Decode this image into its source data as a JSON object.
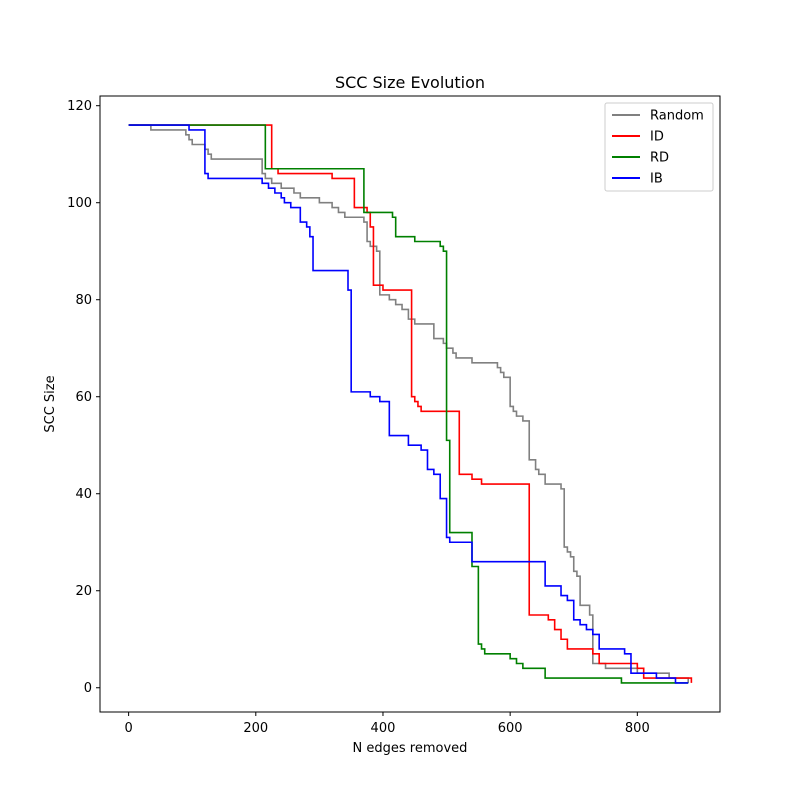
{
  "chart_data": {
    "type": "line",
    "title": "SCC Size Evolution",
    "xlabel": "N edges removed",
    "ylabel": "SCC Size",
    "xlim": [
      -45,
      930
    ],
    "ylim": [
      -5,
      122
    ],
    "xticks": [
      0,
      200,
      400,
      600,
      800
    ],
    "yticks": [
      0,
      20,
      40,
      60,
      80,
      100,
      120
    ],
    "grid": false,
    "legend_position": "top-right",
    "series": [
      {
        "name": "Random",
        "color": "#808080",
        "x": [
          0,
          35,
          90,
          95,
          100,
          105,
          120,
          125,
          130,
          150,
          200,
          210,
          215,
          225,
          240,
          260,
          270,
          300,
          320,
          330,
          340,
          365,
          370,
          375,
          380,
          390,
          395,
          400,
          410,
          420,
          430,
          440,
          450,
          460,
          480,
          490,
          495,
          500,
          505,
          510,
          515,
          540,
          580,
          585,
          590,
          600,
          605,
          610,
          620,
          630,
          640,
          645,
          655,
          680,
          685,
          690,
          695,
          700,
          705,
          710,
          725,
          730,
          740,
          750,
          800,
          850,
          880
        ],
        "y": [
          116,
          115,
          114,
          113,
          112,
          112,
          111,
          110,
          109,
          109,
          109,
          106,
          105,
          104,
          103,
          102,
          101,
          100,
          99,
          98,
          97,
          97,
          96,
          92,
          91,
          90,
          81,
          81,
          80,
          79,
          78,
          76,
          75,
          75,
          72,
          72,
          71,
          70,
          70,
          69,
          68,
          67,
          66,
          65,
          64,
          58,
          57,
          56,
          55,
          47,
          45,
          44,
          42,
          41,
          29,
          28,
          27,
          24,
          23,
          17,
          15,
          5,
          5,
          4,
          3,
          2,
          1
        ]
      },
      {
        "name": "ID",
        "color": "#ff0000",
        "x": [
          0,
          225,
          235,
          265,
          320,
          355,
          375,
          380,
          385,
          400,
          445,
          450,
          455,
          460,
          470,
          490,
          495,
          520,
          540,
          555,
          630,
          640,
          660,
          670,
          680,
          690,
          710,
          730,
          740,
          760,
          800,
          810,
          820,
          860,
          880,
          885
        ],
        "y": [
          116,
          107,
          106,
          106,
          105,
          99,
          98,
          95,
          83,
          82,
          60,
          59,
          58,
          57,
          57,
          57,
          57,
          44,
          43,
          42,
          15,
          15,
          14,
          12,
          10,
          8,
          8,
          7,
          5,
          5,
          4,
          2,
          2,
          2,
          2,
          1
        ]
      },
      {
        "name": "RD",
        "color": "#008000",
        "x": [
          0,
          210,
          215,
          230,
          265,
          370,
          380,
          390,
          415,
          420,
          450,
          480,
          490,
          495,
          500,
          505,
          520,
          540,
          550,
          555,
          560,
          570,
          600,
          610,
          620,
          650,
          655,
          700,
          750,
          775,
          780,
          880
        ],
        "y": [
          116,
          116,
          107,
          107,
          107,
          98,
          98,
          98,
          97,
          93,
          92,
          92,
          91,
          90,
          51,
          32,
          32,
          25,
          9,
          8,
          7,
          7,
          6,
          5,
          4,
          4,
          2,
          2,
          2,
          1,
          1,
          1
        ]
      },
      {
        "name": "IB",
        "color": "#0000ff",
        "x": [
          0,
          95,
          120,
          125,
          130,
          180,
          210,
          220,
          230,
          240,
          245,
          255,
          270,
          280,
          285,
          290,
          295,
          340,
          345,
          350,
          355,
          380,
          395,
          410,
          440,
          460,
          470,
          480,
          490,
          500,
          505,
          510,
          540,
          590,
          650,
          655,
          665,
          680,
          690,
          700,
          710,
          720,
          730,
          740,
          760,
          780,
          790,
          810,
          830,
          850,
          860,
          880
        ],
        "y": [
          116,
          115,
          106,
          105,
          105,
          105,
          104,
          103,
          102,
          101,
          100,
          99,
          96,
          95,
          93,
          86,
          86,
          86,
          82,
          61,
          61,
          60,
          59,
          52,
          50,
          49,
          45,
          44,
          39,
          31,
          30,
          30,
          26,
          26,
          26,
          21,
          21,
          19,
          18,
          14,
          13,
          12,
          11,
          8,
          8,
          7,
          3,
          3,
          2,
          2,
          1,
          1
        ]
      }
    ]
  }
}
